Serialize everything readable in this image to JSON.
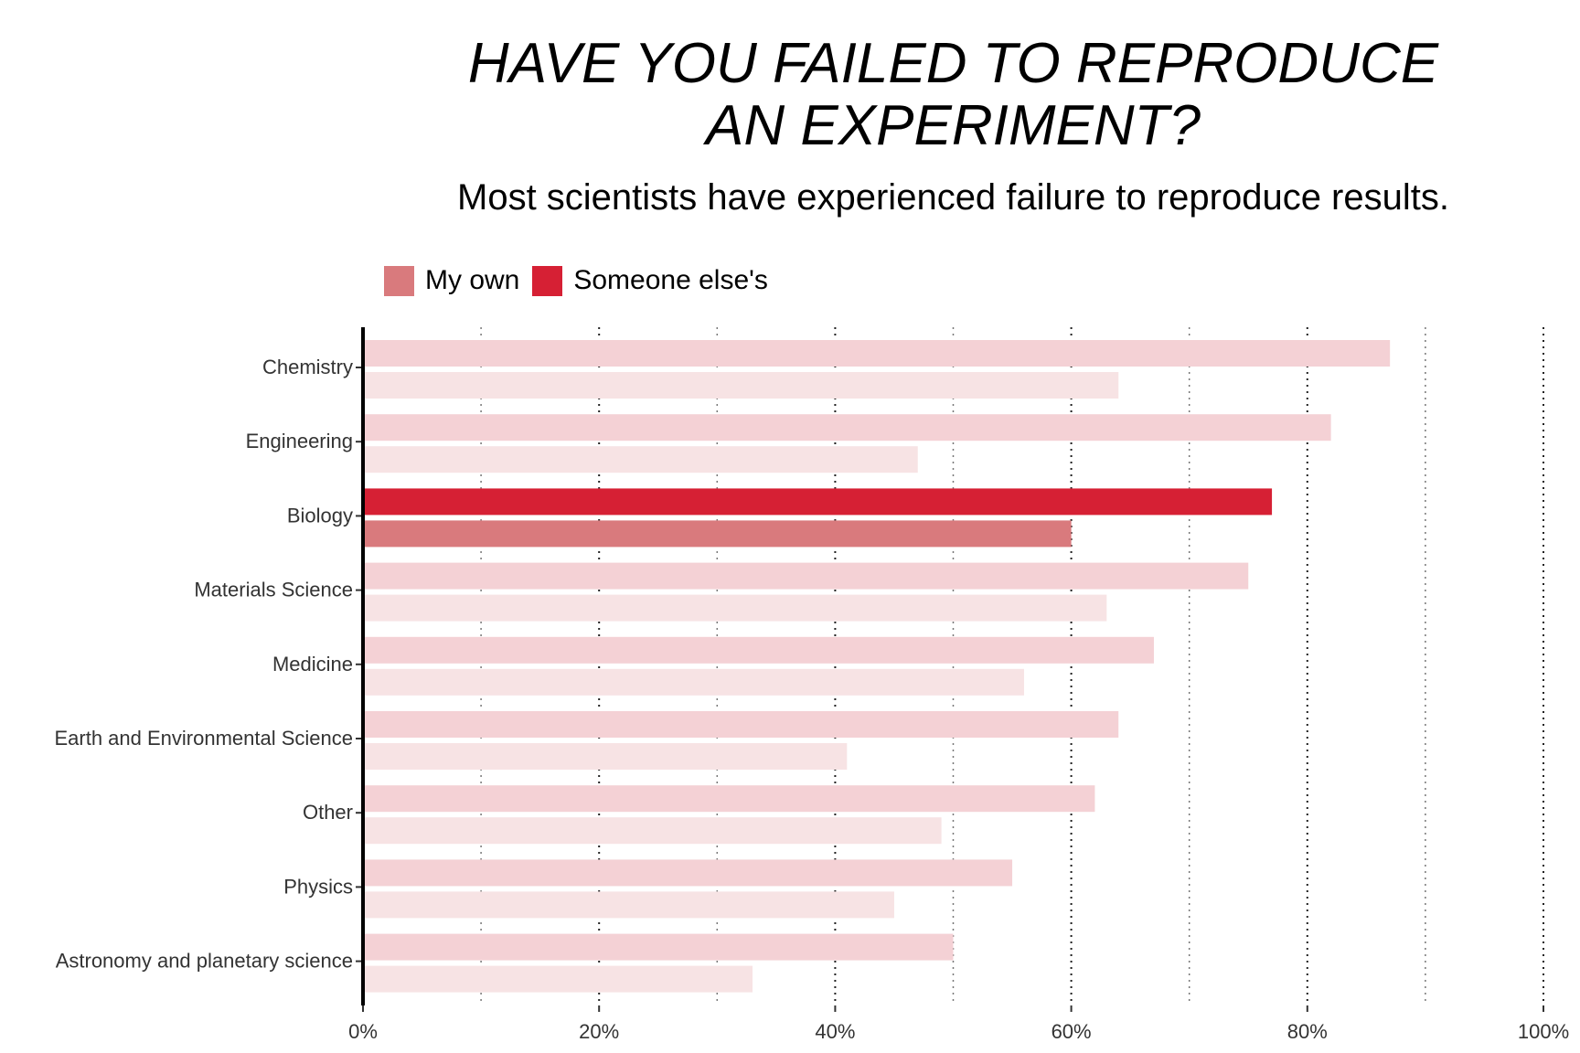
{
  "chart_data": {
    "type": "bar",
    "orientation": "horizontal",
    "title_line1": "HAVE YOU FAILED TO REPRODUCE",
    "title_line2": "AN EXPERIMENT?",
    "subtitle": "Most scientists have experienced failure to reproduce results.",
    "categories": [
      "Chemistry",
      "Engineering",
      "Biology",
      "Materials Science",
      "Medicine",
      "Earth and Environmental Science",
      "Other",
      "Physics",
      "Astronomy and planetary science"
    ],
    "series": [
      {
        "name": "Someone else's",
        "values": [
          87,
          82,
          77,
          75,
          67,
          64,
          62,
          55,
          50
        ]
      },
      {
        "name": "My own",
        "values": [
          64,
          47,
          60,
          63,
          56,
          41,
          49,
          45,
          33
        ]
      }
    ],
    "highlighted_category": "Biology",
    "xlim": [
      0,
      100
    ],
    "x_ticks": [
      "0%",
      "20%",
      "40%",
      "60%",
      "80%",
      "100%"
    ],
    "grid": "vertical dotted",
    "legend_position": "top-left",
    "colors": {
      "someone_else": "#d62034",
      "my_own": "#d97a7d",
      "someone_else_faded": "#f4d1d5",
      "my_own_faded": "#f7e3e4"
    }
  }
}
